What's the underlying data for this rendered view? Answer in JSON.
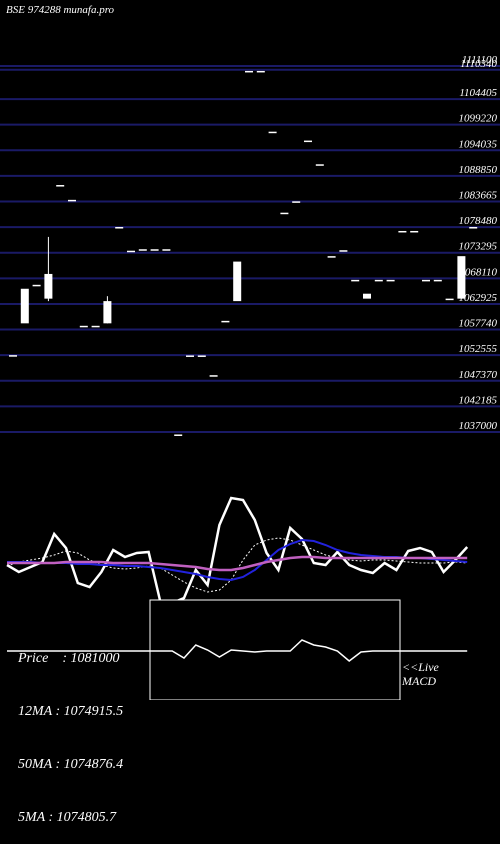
{
  "header": {
    "title": "BSE 974288 munafa.pro"
  },
  "colors": {
    "background": "#000000",
    "grid": "#1a1a66",
    "candle": "#ffffff",
    "ma_short": "#ffffff",
    "ma_mid": "#2222dd",
    "ma_long": "#c060c0",
    "macd_line": "#ffffff"
  },
  "chart_data": [
    {
      "type": "candlestick",
      "title": "",
      "price_axis_ticks": [
        "1111100",
        "1110340",
        "1104405",
        "1099220",
        "1094035",
        "1088850",
        "1083665",
        "1078480",
        "1073295",
        "1068110",
        "1062925",
        "1057740",
        "1052555",
        "1047370",
        "1042185",
        "1037000"
      ],
      "ylim": [
        1037000,
        1111100
      ],
      "candles": [
        {
          "o": 1052555,
          "c": 1052555,
          "h": 1052555,
          "l": 1052555
        },
        {
          "o": 1059000,
          "c": 1066000,
          "h": 1066000,
          "l": 1059000
        },
        {
          "o": 1066800,
          "c": 1066800,
          "h": 1066800,
          "l": 1066800
        },
        {
          "o": 1064000,
          "c": 1069000,
          "h": 1076500,
          "l": 1063500
        },
        {
          "o": 1087000,
          "c": 1087000,
          "h": 1087000,
          "l": 1087000
        },
        {
          "o": 1084000,
          "c": 1084000,
          "h": 1084000,
          "l": 1084000
        },
        {
          "o": 1058500,
          "c": 1058500,
          "h": 1058500,
          "l": 1058500
        },
        {
          "o": 1058500,
          "c": 1058500,
          "h": 1058500,
          "l": 1058500
        },
        {
          "o": 1059000,
          "c": 1063500,
          "h": 1064500,
          "l": 1059000
        },
        {
          "o": 1078500,
          "c": 1078500,
          "h": 1078500,
          "l": 1078500
        },
        {
          "o": 1073700,
          "c": 1073700,
          "h": 1073700,
          "l": 1073700
        },
        {
          "o": 1074000,
          "c": 1074000,
          "h": 1074000,
          "l": 1074000
        },
        {
          "o": 1074000,
          "c": 1074000,
          "h": 1074000,
          "l": 1074000
        },
        {
          "o": 1074000,
          "c": 1074000,
          "h": 1074000,
          "l": 1074000
        },
        {
          "o": 1036500,
          "c": 1036500,
          "h": 1036500,
          "l": 1036500
        },
        {
          "o": 1052500,
          "c": 1052500,
          "h": 1052500,
          "l": 1052500
        },
        {
          "o": 1052500,
          "c": 1052500,
          "h": 1052500,
          "l": 1052500
        },
        {
          "o": 1048500,
          "c": 1048500,
          "h": 1048500,
          "l": 1048500
        },
        {
          "o": 1059500,
          "c": 1059500,
          "h": 1059500,
          "l": 1059500
        },
        {
          "o": 1063500,
          "c": 1071500,
          "h": 1071500,
          "l": 1063500
        },
        {
          "o": 1110100,
          "c": 1110100,
          "h": 1110100,
          "l": 1110100
        },
        {
          "o": 1110100,
          "c": 1110100,
          "h": 1110100,
          "l": 1110100
        },
        {
          "o": 1097800,
          "c": 1097800,
          "h": 1097800,
          "l": 1097800
        },
        {
          "o": 1081400,
          "c": 1081400,
          "h": 1081400,
          "l": 1081400
        },
        {
          "o": 1083700,
          "c": 1083700,
          "h": 1083700,
          "l": 1083700
        },
        {
          "o": 1096000,
          "c": 1096000,
          "h": 1096000,
          "l": 1096000
        },
        {
          "o": 1091200,
          "c": 1091200,
          "h": 1091200,
          "l": 1091200
        },
        {
          "o": 1072600,
          "c": 1072600,
          "h": 1072600,
          "l": 1072600
        },
        {
          "o": 1073800,
          "c": 1073800,
          "h": 1073800,
          "l": 1073800
        },
        {
          "o": 1067800,
          "c": 1067800,
          "h": 1067800,
          "l": 1067800
        },
        {
          "o": 1064000,
          "c": 1065000,
          "h": 1065000,
          "l": 1064000
        },
        {
          "o": 1067800,
          "c": 1067800,
          "h": 1067800,
          "l": 1067800
        },
        {
          "o": 1067800,
          "c": 1067800,
          "h": 1067800,
          "l": 1067800
        },
        {
          "o": 1077700,
          "c": 1077700,
          "h": 1077700,
          "l": 1077700
        },
        {
          "o": 1077700,
          "c": 1077700,
          "h": 1077700,
          "l": 1077700
        },
        {
          "o": 1067800,
          "c": 1067800,
          "h": 1067800,
          "l": 1067800
        },
        {
          "o": 1067800,
          "c": 1067800,
          "h": 1067800,
          "l": 1067800
        },
        {
          "o": 1064000,
          "c": 1064000,
          "h": 1064000,
          "l": 1064000
        },
        {
          "o": 1064000,
          "c": 1072600,
          "h": 1072600,
          "l": 1064000
        },
        {
          "o": 1078500,
          "c": 1078500,
          "h": 1078500,
          "l": 1078500
        }
      ]
    },
    {
      "type": "line",
      "title": "",
      "series": [
        {
          "key": "price",
          "values": [
            565,
            572,
            567,
            562,
            534,
            548,
            583,
            587,
            572,
            550,
            557,
            553,
            552,
            602,
            603,
            598,
            570,
            585,
            525,
            498,
            500,
            520,
            553,
            570,
            528,
            539,
            563,
            565,
            552,
            565,
            570,
            573,
            563,
            570,
            551,
            548,
            552,
            572,
            560,
            547
          ]
        },
        {
          "key": "ma12",
          "values": [
            566,
            562,
            560,
            558,
            555,
            551,
            553,
            560,
            565,
            568,
            569,
            568,
            566,
            568,
            575,
            582,
            588,
            592,
            590,
            580,
            560,
            545,
            540,
            538,
            540,
            545,
            550,
            555,
            558,
            560,
            561,
            560,
            560,
            561,
            562,
            563,
            563,
            563,
            562,
            563
          ]
        },
        {
          "key": "ma50",
          "values": [
            562,
            562,
            562,
            563,
            563,
            563,
            564,
            564,
            565,
            565,
            566,
            566,
            567,
            568,
            570,
            572,
            574,
            577,
            579,
            580,
            577,
            570,
            560,
            550,
            544,
            540,
            541,
            545,
            550,
            553,
            555,
            556,
            557,
            557,
            558,
            558,
            559,
            560,
            561,
            562
          ]
        },
        {
          "key": "ma5",
          "values": [
            563,
            563,
            563,
            563,
            563,
            562,
            562,
            562,
            562,
            563,
            563,
            563,
            563,
            564,
            565,
            566,
            567,
            569,
            570,
            570,
            568,
            565,
            562,
            560,
            558,
            557,
            557,
            558,
            558,
            558,
            558,
            558,
            558,
            558,
            558,
            558,
            558,
            558,
            558,
            558
          ]
        }
      ]
    },
    {
      "type": "line",
      "title": "",
      "series": [
        {
          "key": "macd",
          "values": [
            651,
            651,
            651,
            651,
            651,
            651,
            651,
            651,
            651,
            651,
            651,
            651,
            651,
            651,
            651,
            658,
            645,
            650,
            657,
            650,
            651,
            652,
            651,
            651,
            651,
            640,
            645,
            647,
            651,
            661,
            652,
            651,
            651,
            651,
            651,
            651,
            651,
            651,
            651,
            651
          ]
        }
      ]
    }
  ],
  "stats": {
    "price": "Price    : 1081000",
    "ma12": "12MA : 1074915.5",
    "ma50": "50MA : 1074876.4",
    "ma5": "5MA : 1074805.7"
  },
  "live": {
    "line1": "<<Live",
    "line2": "MACD"
  }
}
